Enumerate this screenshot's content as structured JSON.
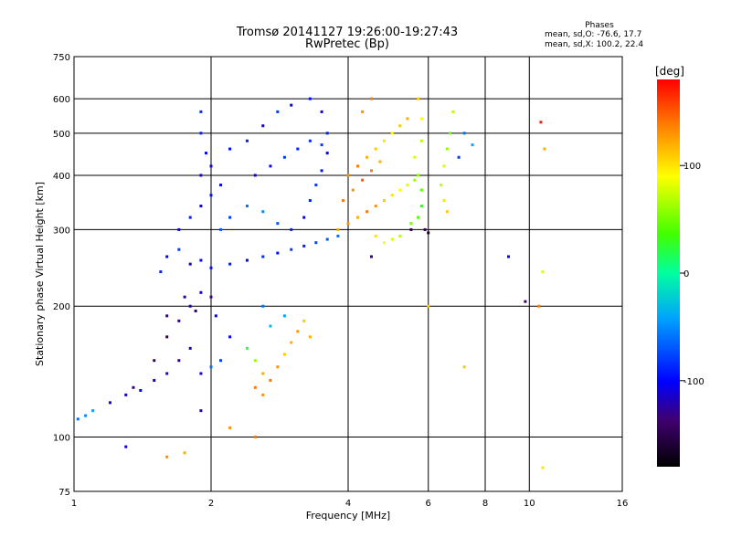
{
  "chart_data": {
    "type": "scatter",
    "title": "Tromsø 20141127 19:26:00-19:27:43",
    "subtitle": "RwPretec (Bp)",
    "xlabel": "Frequency [MHz]",
    "ylabel": "Stationary phase Virtual Height [km]",
    "xscale": "log",
    "yscale": "log",
    "xlim": [
      1,
      16
    ],
    "ylim": [
      75,
      750
    ],
    "xticks": [
      1,
      2,
      4,
      6,
      8,
      10,
      16
    ],
    "yticks": [
      75,
      100,
      200,
      300,
      400,
      500,
      600,
      750
    ],
    "xgrid": [
      2,
      4,
      6,
      8,
      10
    ],
    "ygrid": [
      100,
      200,
      300,
      400,
      500,
      600
    ],
    "grid": true,
    "colorbar": {
      "label": "[deg]",
      "range": [
        -180,
        180
      ],
      "ticks": [
        100,
        0,
        -100
      ],
      "colormap": "rainbow"
    },
    "stats": {
      "heading": "Phases",
      "o_mode": "mean, sd,O: -76.6, 17.7",
      "x_mode": "mean, sd,X: 100.2, 22.4"
    },
    "points_note_values": "x = frequency MHz, y = virtual height km, c = phase deg",
    "points": [
      [
        1.02,
        110,
        -60
      ],
      [
        1.06,
        112,
        -50
      ],
      [
        1.1,
        115,
        -40
      ],
      [
        1.2,
        120,
        -120
      ],
      [
        1.3,
        125,
        -110
      ],
      [
        1.35,
        130,
        -130
      ],
      [
        1.4,
        128,
        -100
      ],
      [
        1.5,
        135,
        -120
      ],
      [
        1.6,
        140,
        -110
      ],
      [
        1.7,
        150,
        -130
      ],
      [
        1.8,
        160,
        -120
      ],
      [
        1.9,
        140,
        -100
      ],
      [
        2.0,
        145,
        -60
      ],
      [
        2.1,
        150,
        -80
      ],
      [
        2.2,
        170,
        -100
      ],
      [
        1.5,
        150,
        -140
      ],
      [
        1.6,
        170,
        -150
      ],
      [
        1.7,
        185,
        -130
      ],
      [
        1.8,
        200,
        -120
      ],
      [
        1.9,
        215,
        -110
      ],
      [
        1.6,
        190,
        -130
      ],
      [
        1.75,
        210,
        -120
      ],
      [
        1.85,
        195,
        -140
      ],
      [
        2.0,
        210,
        -130
      ],
      [
        2.05,
        190,
        -110
      ],
      [
        1.55,
        240,
        -90
      ],
      [
        1.6,
        260,
        -100
      ],
      [
        1.7,
        270,
        -80
      ],
      [
        1.8,
        250,
        -110
      ],
      [
        1.9,
        255,
        -100
      ],
      [
        2.0,
        245,
        -95
      ],
      [
        2.2,
        250,
        -90
      ],
      [
        2.4,
        255,
        -100
      ],
      [
        2.6,
        260,
        -85
      ],
      [
        2.8,
        265,
        -95
      ],
      [
        3.0,
        270,
        -80
      ],
      [
        3.2,
        275,
        -90
      ],
      [
        3.4,
        280,
        -75
      ],
      [
        3.6,
        285,
        -70
      ],
      [
        3.8,
        290,
        -60
      ],
      [
        1.7,
        300,
        -110
      ],
      [
        1.8,
        320,
        -90
      ],
      [
        1.9,
        340,
        -105
      ],
      [
        2.0,
        360,
        -95
      ],
      [
        2.1,
        380,
        -100
      ],
      [
        1.9,
        400,
        -120
      ],
      [
        2.0,
        420,
        -110
      ],
      [
        1.95,
        450,
        -100
      ],
      [
        1.9,
        500,
        -90
      ],
      [
        1.9,
        560,
        -85
      ],
      [
        2.1,
        300,
        -70
      ],
      [
        2.2,
        320,
        -80
      ],
      [
        2.4,
        340,
        -60
      ],
      [
        2.6,
        330,
        -50
      ],
      [
        2.8,
        310,
        -70
      ],
      [
        3.0,
        300,
        -90
      ],
      [
        3.2,
        320,
        -100
      ],
      [
        3.3,
        350,
        -90
      ],
      [
        3.4,
        380,
        -80
      ],
      [
        3.5,
        410,
        -95
      ],
      [
        3.6,
        450,
        -100
      ],
      [
        3.6,
        500,
        -90
      ],
      [
        3.5,
        560,
        -110
      ],
      [
        3.3,
        600,
        -95
      ],
      [
        3.0,
        580,
        -100
      ],
      [
        2.8,
        560,
        -80
      ],
      [
        2.6,
        520,
        -110
      ],
      [
        2.4,
        480,
        -90
      ],
      [
        2.2,
        460,
        -100
      ],
      [
        2.5,
        400,
        -120
      ],
      [
        2.7,
        420,
        -100
      ],
      [
        2.9,
        440,
        -80
      ],
      [
        3.1,
        460,
        -90
      ],
      [
        3.3,
        480,
        -85
      ],
      [
        3.5,
        470,
        -80
      ],
      [
        2.4,
        160,
        20
      ],
      [
        2.5,
        150,
        60
      ],
      [
        2.6,
        140,
        120
      ],
      [
        2.7,
        135,
        140
      ],
      [
        2.8,
        145,
        130
      ],
      [
        2.9,
        155,
        110
      ],
      [
        3.0,
        165,
        120
      ],
      [
        3.1,
        175,
        130
      ],
      [
        3.2,
        185,
        110
      ],
      [
        3.3,
        170,
        120
      ],
      [
        2.5,
        130,
        140
      ],
      [
        2.6,
        125,
        130
      ],
      [
        2.7,
        180,
        -30
      ],
      [
        2.9,
        190,
        -40
      ],
      [
        2.6,
        200,
        -60
      ],
      [
        3.8,
        300,
        120
      ],
      [
        4.0,
        310,
        130
      ],
      [
        4.2,
        320,
        120
      ],
      [
        4.4,
        330,
        140
      ],
      [
        4.6,
        340,
        130
      ],
      [
        4.8,
        350,
        110
      ],
      [
        5.0,
        360,
        100
      ],
      [
        5.2,
        370,
        90
      ],
      [
        5.4,
        380,
        80
      ],
      [
        5.6,
        390,
        60
      ],
      [
        4.0,
        400,
        130
      ],
      [
        4.2,
        420,
        140
      ],
      [
        4.4,
        440,
        120
      ],
      [
        4.6,
        460,
        110
      ],
      [
        4.8,
        480,
        100
      ],
      [
        5.0,
        500,
        90
      ],
      [
        5.2,
        520,
        110
      ],
      [
        5.4,
        540,
        120
      ],
      [
        4.3,
        560,
        130
      ],
      [
        4.5,
        600,
        140
      ],
      [
        3.9,
        350,
        140
      ],
      [
        4.1,
        370,
        130
      ],
      [
        4.3,
        390,
        150
      ],
      [
        4.5,
        410,
        140
      ],
      [
        4.7,
        430,
        120
      ],
      [
        4.6,
        290,
        100
      ],
      [
        4.8,
        280,
        90
      ],
      [
        5.0,
        285,
        80
      ],
      [
        5.2,
        290,
        70
      ],
      [
        5.5,
        310,
        50
      ],
      [
        5.7,
        320,
        40
      ],
      [
        5.8,
        340,
        30
      ],
      [
        5.8,
        370,
        45
      ],
      [
        5.7,
        400,
        60
      ],
      [
        5.6,
        440,
        80
      ],
      [
        5.8,
        480,
        70
      ],
      [
        5.8,
        540,
        90
      ],
      [
        5.7,
        600,
        110
      ],
      [
        6.4,
        380,
        70
      ],
      [
        6.5,
        420,
        80
      ],
      [
        6.6,
        460,
        60
      ],
      [
        6.7,
        500,
        50
      ],
      [
        6.8,
        560,
        70
      ],
      [
        6.5,
        350,
        100
      ],
      [
        6.6,
        330,
        110
      ],
      [
        7.0,
        440,
        -80
      ],
      [
        7.2,
        500,
        -60
      ],
      [
        7.5,
        470,
        -40
      ],
      [
        1.3,
        95,
        -110
      ],
      [
        1.6,
        90,
        130
      ],
      [
        1.75,
        92,
        120
      ],
      [
        1.9,
        115,
        -120
      ],
      [
        2.2,
        105,
        130
      ],
      [
        2.5,
        100,
        140
      ],
      [
        6.0,
        200,
        110
      ],
      [
        7.2,
        145,
        110
      ],
      [
        9.8,
        205,
        -140
      ],
      [
        10.5,
        200,
        140
      ],
      [
        10.6,
        530,
        170
      ],
      [
        10.7,
        240,
        80
      ],
      [
        10.8,
        460,
        120
      ],
      [
        10.7,
        85,
        100
      ],
      [
        9.0,
        260,
        -100
      ],
      [
        5.9,
        300,
        -150
      ],
      [
        6.0,
        295,
        -170
      ],
      [
        5.5,
        300,
        -150
      ],
      [
        4.5,
        260,
        -130
      ]
    ]
  }
}
